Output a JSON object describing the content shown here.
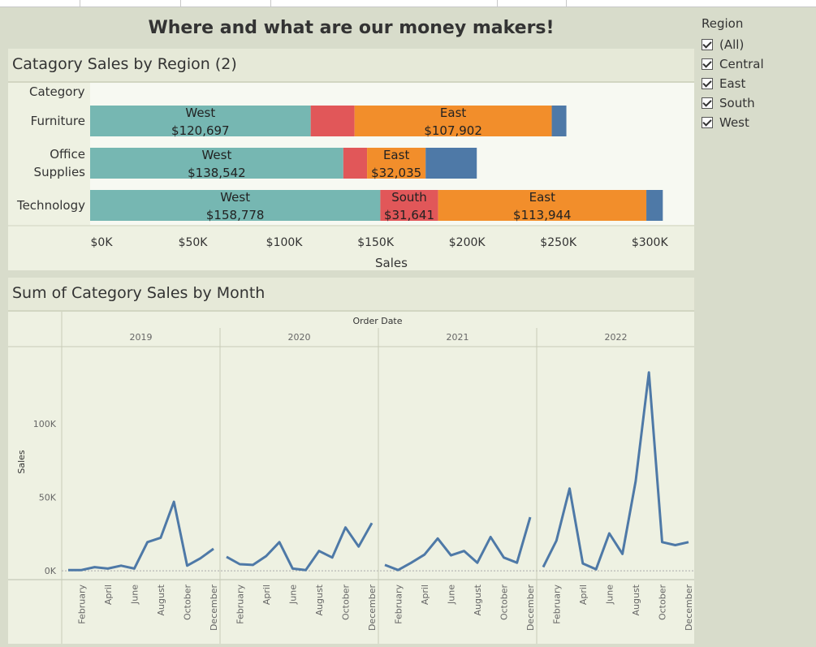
{
  "dashboard": {
    "title": "Where and what are our money makers!"
  },
  "filter": {
    "title": "Region",
    "items": [
      "(All)",
      "Central",
      "East",
      "South",
      "West"
    ]
  },
  "colors": {
    "West": "#76b7b2",
    "South": "#e15759",
    "East": "#f28e2b",
    "Central": "#4e79a7",
    "line": "#4e79a7"
  },
  "chart_data": [
    {
      "type": "bar",
      "orientation": "horizontal-stacked",
      "title": "Catagory Sales by Region (2)",
      "row_header": "Category",
      "xlabel": "Sales",
      "categories": [
        "Furniture",
        "Office Supplies",
        "Technology"
      ],
      "category_lines": [
        [
          "Furniture"
        ],
        [
          "Office",
          "Supplies"
        ],
        [
          "Technology"
        ]
      ],
      "series": [
        {
          "name": "West",
          "values": [
            120697,
            138542,
            158778
          ]
        },
        {
          "name": "South",
          "values": [
            24000,
            13000,
            31641
          ]
        },
        {
          "name": "East",
          "values": [
            107902,
            32035,
            113944
          ]
        },
        {
          "name": "Central",
          "values": [
            8000,
            28000,
            9000
          ]
        }
      ],
      "labels": [
        [
          {
            "series": "West",
            "name": "West",
            "value": "$120,697"
          },
          {
            "series": "East",
            "name": "East",
            "value": "$107,902"
          }
        ],
        [
          {
            "series": "West",
            "name": "West",
            "value": "$138,542"
          },
          {
            "series": "East",
            "name": "East",
            "value": "$32,035"
          }
        ],
        [
          {
            "series": "West",
            "name": "West",
            "value": "$158,778"
          },
          {
            "series": "South",
            "name": "South",
            "value": "$31,641"
          },
          {
            "series": "East",
            "name": "East",
            "value": "$113,944"
          }
        ]
      ],
      "ticks": [
        {
          "v": 0,
          "label": "$0K"
        },
        {
          "v": 50000,
          "label": "$50K"
        },
        {
          "v": 100000,
          "label": "$100K"
        },
        {
          "v": 150000,
          "label": "$150K"
        },
        {
          "v": 200000,
          "label": "$200K"
        },
        {
          "v": 250000,
          "label": "$250K"
        },
        {
          "v": 300000,
          "label": "$300K"
        }
      ],
      "xlim": [
        0,
        315000
      ]
    },
    {
      "type": "line",
      "title": "Sum of Category Sales by Month",
      "column_header": "Order Date",
      "ylabel": "Sales",
      "ylim": [
        -6000,
        152000
      ],
      "yticks": [
        {
          "v": 0,
          "label": "0K"
        },
        {
          "v": 50000,
          "label": "50K"
        },
        {
          "v": 100000,
          "label": "100K"
        }
      ],
      "x_tick_labels": [
        "February",
        "April",
        "June",
        "August",
        "October",
        "December"
      ],
      "x_tick_months": [
        2,
        4,
        6,
        8,
        10,
        12
      ],
      "panels": [
        {
          "year": "2019",
          "values": [
            500,
            500,
            2500,
            1500,
            3500,
            1500,
            19500,
            22500,
            47000,
            3500,
            8500,
            15000
          ]
        },
        {
          "year": "2020",
          "values": [
            9500,
            4500,
            4000,
            10000,
            19500,
            1500,
            500,
            13500,
            9000,
            29500,
            16500,
            32500
          ]
        },
        {
          "year": "2021",
          "values": [
            4000,
            500,
            5500,
            11000,
            22000,
            10500,
            13500,
            5500,
            23000,
            9000,
            5500,
            36500
          ]
        },
        {
          "year": "2022",
          "values": [
            2500,
            20500,
            56000,
            5000,
            1000,
            25500,
            11500,
            61000,
            135000,
            19500,
            17500,
            19500
          ]
        }
      ]
    }
  ]
}
